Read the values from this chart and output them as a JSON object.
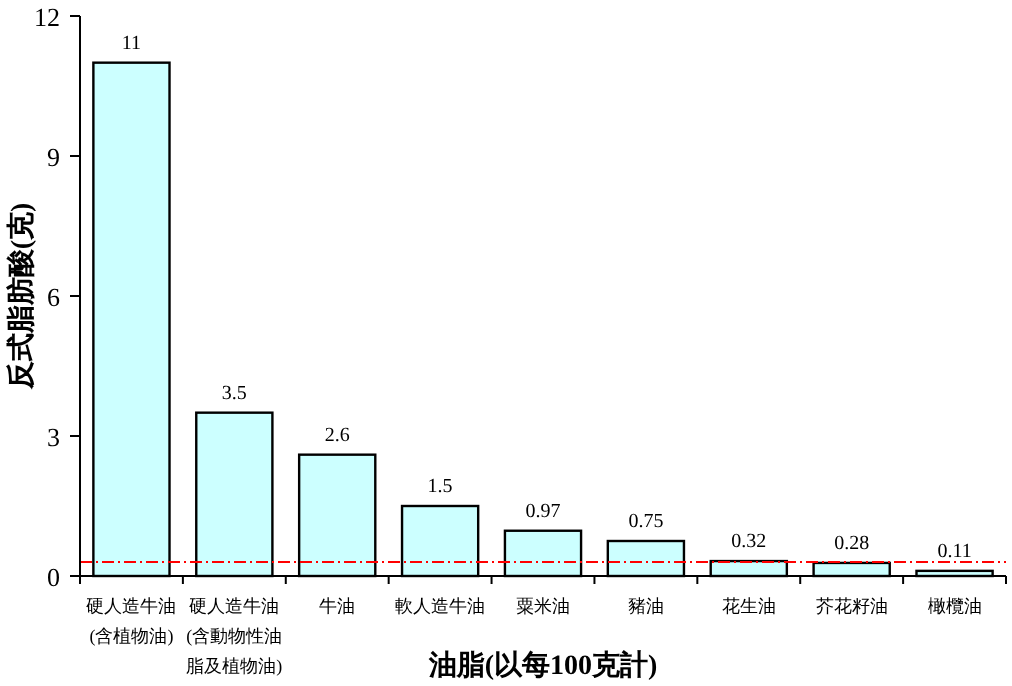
{
  "chart_data": {
    "type": "bar",
    "categories": [
      "硬人造牛油(含植物油)",
      "硬人造牛油(含動物性油脂及植物油)",
      "牛油",
      "軟人造牛油",
      "粟米油",
      "豬油",
      "花生油",
      "芥花籽油",
      "橄欖油"
    ],
    "values": [
      11,
      3.5,
      2.6,
      1.5,
      0.97,
      0.75,
      0.32,
      0.28,
      0.11
    ],
    "color": "#ccffff",
    "data_labels": true,
    "ylim": [
      0,
      12
    ],
    "yticks": [
      0,
      3,
      6,
      9,
      12
    ],
    "xlabel": "油脂(以每100克計)",
    "ylabel": "反式脂肪酸(克)",
    "ref_lines": [
      {
        "axis": "y",
        "value": 0.3,
        "color": "#ff0000",
        "line_style": "dashdot"
      }
    ],
    "grid": false
  }
}
